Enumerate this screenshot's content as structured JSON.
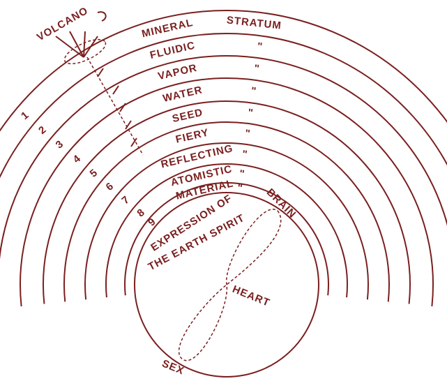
{
  "volcano": "VOLCANO",
  "strata": [
    {
      "number": "1",
      "name": "MINERAL",
      "suffix": "STRATUM"
    },
    {
      "number": "2",
      "name": "FLUIDIC",
      "suffix": "\""
    },
    {
      "number": "3",
      "name": "VAPOR",
      "suffix": "\""
    },
    {
      "number": "4",
      "name": "WATER",
      "suffix": "\""
    },
    {
      "number": "5",
      "name": "SEED",
      "suffix": "\""
    },
    {
      "number": "6",
      "name": "FIERY",
      "suffix": "\""
    },
    {
      "number": "7",
      "name": "REFLECTING",
      "suffix": "\""
    },
    {
      "number": "8",
      "name": "ATOMISTIC",
      "suffix": "\""
    },
    {
      "number": "9",
      "name": "MATERIAL",
      "suffix": "\""
    }
  ],
  "core": {
    "caption_lines": [
      "EXPRESSION OF",
      "THE EARTH SPIRIT"
    ],
    "brain": "BRAIN",
    "heart": "HEART",
    "sex": "SEX"
  }
}
